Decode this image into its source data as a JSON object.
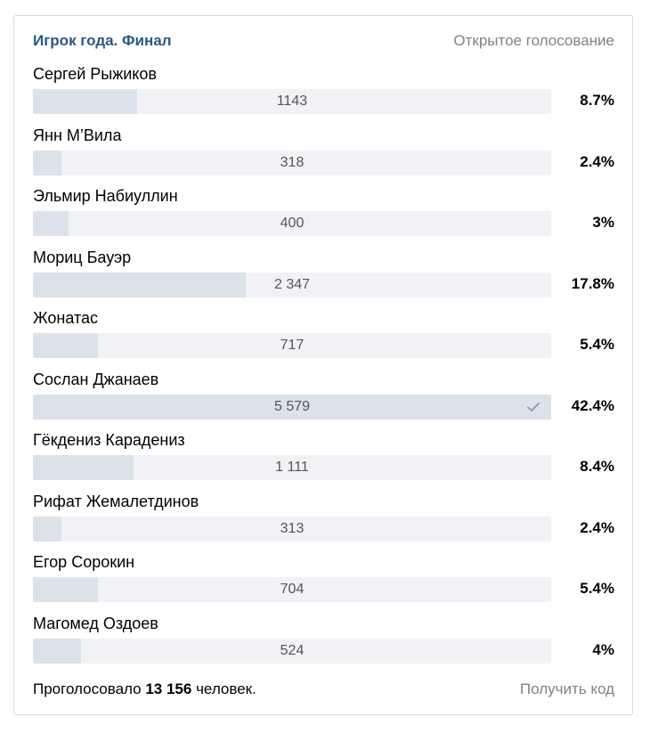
{
  "poll": {
    "title": "Игрок года. Финал",
    "type_label": "Открытое голосование",
    "options": [
      {
        "name": "Сергей Рыжиков",
        "votes": "1143",
        "percent": "8.7%",
        "fraction": 0.087,
        "voted": false
      },
      {
        "name": "Янн М’Вила",
        "votes": "318",
        "percent": "2.4%",
        "fraction": 0.024,
        "voted": false
      },
      {
        "name": "Эльмир Набиуллин",
        "votes": "400",
        "percent": "3%",
        "fraction": 0.03,
        "voted": false
      },
      {
        "name": "Мориц Бауэр",
        "votes": "2 347",
        "percent": "17.8%",
        "fraction": 0.178,
        "voted": false
      },
      {
        "name": "Жонатас",
        "votes": "717",
        "percent": "5.4%",
        "fraction": 0.054,
        "voted": false
      },
      {
        "name": "Сослан Джанаев",
        "votes": "5 579",
        "percent": "42.4%",
        "fraction": 0.424,
        "voted": true
      },
      {
        "name": "Гёкдениз Карадениз",
        "votes": "1 111",
        "percent": "8.4%",
        "fraction": 0.084,
        "voted": false
      },
      {
        "name": "Рифат Жемалетдинов",
        "votes": "313",
        "percent": "2.4%",
        "fraction": 0.024,
        "voted": false
      },
      {
        "name": "Егор Сорокин",
        "votes": "704",
        "percent": "5.4%",
        "fraction": 0.054,
        "voted": false
      },
      {
        "name": "Магомед Оздоев",
        "votes": "524",
        "percent": "4%",
        "fraction": 0.04,
        "voted": false
      }
    ],
    "footer": {
      "total_prefix": "Проголосовало ",
      "total_count": "13 156",
      "total_suffix": " человек.",
      "get_code_label": "Получить код"
    }
  }
}
